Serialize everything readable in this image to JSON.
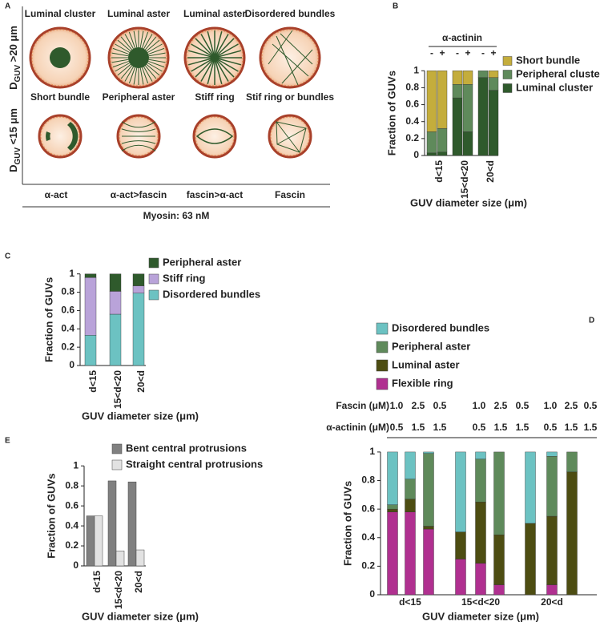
{
  "panel_labels": [
    "A",
    "B",
    "C",
    "D",
    "E"
  ],
  "panel_a": {
    "row_labels": [
      {
        "main": "D",
        "sub": "GUV",
        "rest": " >20 μm"
      },
      {
        "main": "D",
        "sub": "GUV",
        "rest": " <15 μm"
      }
    ],
    "top_titles": [
      "Luminal cluster",
      "Luminal aster",
      "Luminal aster",
      "Disordered bundles"
    ],
    "bottom_titles": [
      "Short bundle",
      "Peripheral aster",
      "Stiff ring",
      "Stif ring or bundles"
    ],
    "conditions": [
      "α-act",
      "α-act>fascin",
      "fascin>α-act",
      "Fascin"
    ],
    "footer": "Myosin: 63 nM"
  },
  "chart_data": [
    {
      "type": "bar",
      "stacked": true,
      "header": "α-actinin",
      "categories": [
        "-",
        "+",
        "-",
        "+",
        "-",
        "+"
      ],
      "groups": [
        "d<15",
        "15<d<20",
        "20<d"
      ],
      "series": [
        {
          "name": "Luminal cluster",
          "color": "#2f5a2c",
          "values": [
            0.03,
            0.04,
            0.68,
            0.28,
            0.92,
            0.77
          ]
        },
        {
          "name": "Peripheral cluster",
          "color": "#5f8a5b",
          "values": [
            0.25,
            0.28,
            0.16,
            0.56,
            0.08,
            0.15
          ]
        },
        {
          "name": "Short bundle",
          "color": "#c4ad3c",
          "values": [
            0.72,
            0.68,
            0.16,
            0.16,
            0,
            0.08
          ]
        }
      ],
      "ylabel": "Fraction of GUVs",
      "xlabel": "GUV diameter size (μm)",
      "ylim": [
        0,
        1.05
      ],
      "yticks": [
        0,
        0.2,
        0.4,
        0.6,
        0.8,
        1
      ]
    },
    {
      "type": "bar",
      "stacked": true,
      "categories": [
        "d<15",
        "15<d<20",
        "20<d"
      ],
      "series": [
        {
          "name": "Disordered bundles",
          "color": "#6cc2c2",
          "values": [
            0.33,
            0.56,
            0.79
          ]
        },
        {
          "name": "Stiff ring",
          "color": "#b9a3d9",
          "values": [
            0.63,
            0.25,
            0.08
          ]
        },
        {
          "name": "Peripheral aster",
          "color": "#2f5a2c",
          "values": [
            0.04,
            0.19,
            0.13
          ]
        }
      ],
      "ylabel": "Fraction of GUVs",
      "xlabel": "GUV diameter size (μm)",
      "ylim": [
        0,
        1.05
      ],
      "yticks": [
        0,
        0.2,
        0.4,
        0.6,
        0.8,
        1
      ]
    },
    {
      "type": "bar",
      "stacked": true,
      "categories": [
        null,
        null,
        null,
        null,
        null,
        null,
        null,
        null,
        null
      ],
      "groups": [
        "d<15",
        "15<d<20",
        "20<d"
      ],
      "table": {
        "rows": [
          {
            "label": "Fascin (μM)",
            "values": [
              "1.0",
              "2.5",
              "0.5",
              "1.0",
              "2.5",
              "0.5",
              "1.0",
              "2.5",
              "0.5"
            ]
          },
          {
            "label": "α-actinin (μM)",
            "values": [
              "0.5",
              "1.5",
              "1.5",
              "0.5",
              "1.5",
              "1.5",
              "0.5",
              "1.5",
              "1.5"
            ]
          }
        ]
      },
      "series": [
        {
          "name": "Flexible ring",
          "color": "#b03090",
          "values": [
            0.58,
            0.58,
            0.46,
            0.25,
            0.22,
            0.07,
            0,
            0.07,
            0
          ]
        },
        {
          "name": "Luminal aster",
          "color": "#4d4d12",
          "values": [
            0.02,
            0.09,
            0.02,
            0.19,
            0.43,
            0.35,
            0.5,
            0.48,
            0.86
          ]
        },
        {
          "name": "Peripheral aster",
          "color": "#5f8a5b",
          "values": [
            0.03,
            0.14,
            0.51,
            0,
            0.3,
            0.58,
            0,
            0.42,
            0.14
          ]
        },
        {
          "name": "Disordered bundles",
          "color": "#6cc2c2",
          "values": [
            0.37,
            0.19,
            0.01,
            0.56,
            0.05,
            0,
            0.5,
            0.03,
            0
          ]
        }
      ],
      "ylabel": "Fraction of GUVs",
      "xlabel": "GUV diameter size (μm)",
      "ylim": [
        0,
        1.05
      ],
      "yticks": [
        0,
        0.2,
        0.4,
        0.6,
        0.8,
        1
      ]
    },
    {
      "type": "bar",
      "stacked": false,
      "categories": [
        "d<15",
        "15<d<20",
        "20<d"
      ],
      "series": [
        {
          "name": "Bent central protrusions",
          "color": "#808080",
          "values": [
            0.5,
            0.85,
            0.84
          ]
        },
        {
          "name": "Straight central protrusions",
          "color": "#e2e2e2",
          "values": [
            0.5,
            0.15,
            0.16
          ]
        }
      ],
      "ylabel": "Fraction of GUVs",
      "xlabel": "GUV diameter size (μm)",
      "ylim": [
        0,
        1.05
      ],
      "yticks": [
        0,
        0.2,
        0.4,
        0.6,
        0.8,
        1
      ]
    }
  ]
}
